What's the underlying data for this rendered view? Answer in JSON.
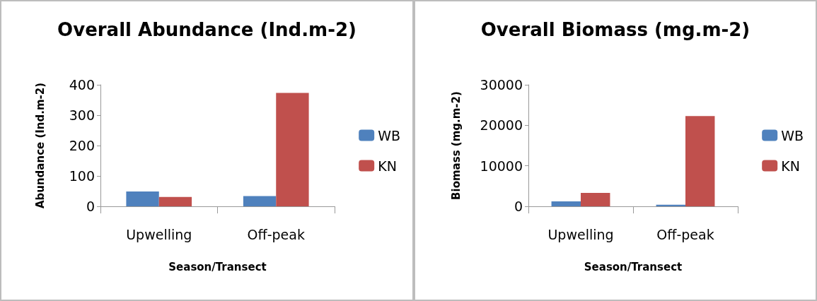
{
  "chart_data": [
    {
      "type": "bar",
      "title": "Overall Abundance (Ind.m-2)",
      "xlabel": "Season/Transect",
      "ylabel": "Abundance (Ind.m-2)",
      "categories": [
        "Upwelling",
        "Off-peak"
      ],
      "series": [
        {
          "name": "WB",
          "color": "#4f81bd",
          "values": [
            49,
            34
          ]
        },
        {
          "name": "KN",
          "color": "#c0504d",
          "values": [
            31,
            373
          ]
        }
      ],
      "ylim": [
        0,
        400
      ],
      "yticks": [
        0,
        100,
        200,
        300,
        400
      ],
      "grid": false,
      "legend": "right"
    },
    {
      "type": "bar",
      "title": "Overall Biomass (mg.m-2)",
      "xlabel": "Season/Transect",
      "ylabel": "Biomass (mg.m-2)",
      "categories": [
        "Upwelling",
        "Off-peak"
      ],
      "series": [
        {
          "name": "WB",
          "color": "#4f81bd",
          "values": [
            1200,
            400
          ]
        },
        {
          "name": "KN",
          "color": "#c0504d",
          "values": [
            3300,
            22300
          ]
        }
      ],
      "ylim": [
        0,
        30000
      ],
      "yticks": [
        0,
        10000,
        20000,
        30000
      ],
      "grid": false,
      "legend": "right"
    }
  ]
}
